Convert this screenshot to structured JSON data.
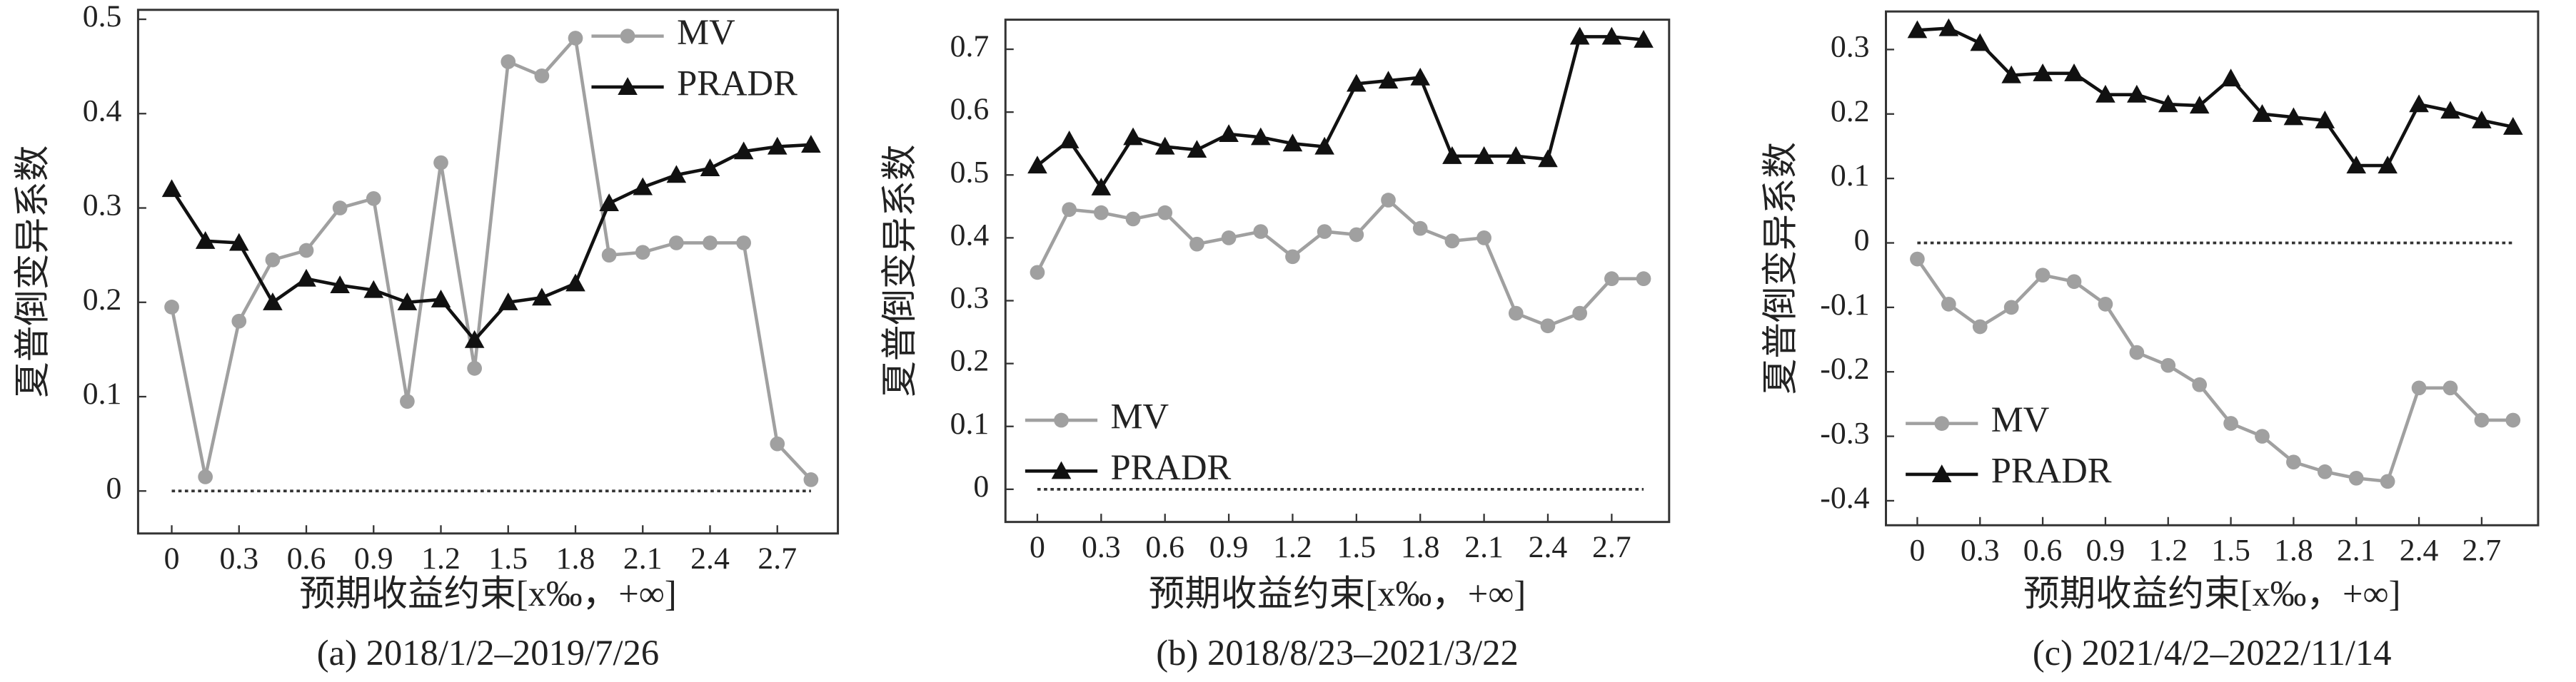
{
  "chart_data": [
    {
      "type": "line",
      "title": "(a) 2018/1/2–2019/7/26",
      "x_label": "预期收益约束[x‰，+∞]",
      "y_label": "夏普倒变异系数",
      "x": [
        0,
        0.15,
        0.3,
        0.45,
        0.6,
        0.75,
        0.9,
        1.05,
        1.2,
        1.35,
        1.5,
        1.65,
        1.8,
        1.95,
        2.1,
        2.25,
        2.4,
        2.55,
        2.7,
        2.85
      ],
      "series": [
        {
          "name": "MV",
          "color": "#a0a0a0",
          "marker": "circle",
          "values": [
            0.195,
            0.015,
            0.18,
            0.245,
            0.255,
            0.3,
            0.31,
            0.095,
            0.348,
            0.13,
            0.455,
            0.44,
            0.48,
            0.25,
            0.253,
            0.263,
            0.263,
            0.263,
            0.05,
            0.012
          ]
        },
        {
          "name": "PRADR",
          "color": "#111111",
          "marker": "triangle",
          "values": [
            0.32,
            0.265,
            0.263,
            0.2,
            0.225,
            0.218,
            0.213,
            0.2,
            0.203,
            0.16,
            0.2,
            0.205,
            0.22,
            0.305,
            0.322,
            0.335,
            0.342,
            0.36,
            0.365,
            0.367
          ]
        }
      ],
      "xlim": [
        -0.15,
        2.97
      ],
      "ylim": [
        -0.045,
        0.51
      ],
      "xticks": [
        0,
        0.3,
        0.6,
        0.9,
        1.2,
        1.5,
        1.8,
        2.1,
        2.4,
        2.7
      ],
      "yticks": [
        0,
        0.1,
        0.2,
        0.3,
        0.4,
        0.5
      ],
      "hline": 0,
      "legend": "upper right"
    },
    {
      "type": "line",
      "title": "(b) 2018/8/23–2021/3/22",
      "x_label": "预期收益约束[x‰，+∞]",
      "y_label": "夏普倒变异系数",
      "x": [
        0,
        0.15,
        0.3,
        0.45,
        0.6,
        0.75,
        0.9,
        1.05,
        1.2,
        1.35,
        1.5,
        1.65,
        1.8,
        1.95,
        2.1,
        2.25,
        2.4,
        2.55,
        2.7,
        2.85
      ],
      "series": [
        {
          "name": "MV",
          "color": "#a0a0a0",
          "marker": "circle",
          "values": [
            0.345,
            0.445,
            0.44,
            0.43,
            0.44,
            0.39,
            0.4,
            0.41,
            0.37,
            0.41,
            0.405,
            0.46,
            0.415,
            0.395,
            0.4,
            0.28,
            0.26,
            0.28,
            0.335,
            0.335
          ]
        },
        {
          "name": "PRADR",
          "color": "#111111",
          "marker": "triangle",
          "values": [
            0.515,
            0.555,
            0.48,
            0.56,
            0.545,
            0.54,
            0.565,
            0.56,
            0.55,
            0.545,
            0.645,
            0.65,
            0.655,
            0.53,
            0.53,
            0.53,
            0.525,
            0.72,
            0.72,
            0.715
          ]
        }
      ],
      "xlim": [
        -0.15,
        2.97
      ],
      "ylim": [
        -0.052,
        0.747
      ],
      "xticks": [
        0,
        0.3,
        0.6,
        0.9,
        1.2,
        1.5,
        1.8,
        2.1,
        2.4,
        2.7
      ],
      "yticks": [
        0,
        0.1,
        0.2,
        0.3,
        0.4,
        0.5,
        0.6,
        0.7
      ],
      "hline": 0,
      "legend": "lower left"
    },
    {
      "type": "line",
      "title": "(c) 2021/4/2–2022/11/14",
      "x_label": "预期收益约束[x‰，+∞]",
      "y_label": "夏普倒变异系数",
      "x": [
        0,
        0.15,
        0.3,
        0.45,
        0.6,
        0.75,
        0.9,
        1.05,
        1.2,
        1.35,
        1.5,
        1.65,
        1.8,
        1.95,
        2.1,
        2.25,
        2.4,
        2.55,
        2.7,
        2.85
      ],
      "series": [
        {
          "name": "MV",
          "color": "#a0a0a0",
          "marker": "circle",
          "values": [
            -0.025,
            -0.095,
            -0.13,
            -0.1,
            -0.05,
            -0.06,
            -0.095,
            -0.17,
            -0.19,
            -0.22,
            -0.28,
            -0.3,
            -0.34,
            -0.355,
            -0.365,
            -0.37,
            -0.225,
            -0.225,
            -0.275,
            -0.275
          ]
        },
        {
          "name": "PRADR",
          "color": "#111111",
          "marker": "triangle",
          "values": [
            0.33,
            0.333,
            0.31,
            0.26,
            0.263,
            0.263,
            0.23,
            0.23,
            0.215,
            0.213,
            0.255,
            0.2,
            0.195,
            0.19,
            0.12,
            0.12,
            0.215,
            0.205,
            0.19,
            0.18
          ]
        }
      ],
      "xlim": [
        -0.15,
        2.97
      ],
      "ylim": [
        -0.438,
        0.359
      ],
      "xticks": [
        0,
        0.3,
        0.6,
        0.9,
        1.2,
        1.5,
        1.8,
        2.1,
        2.4,
        2.7
      ],
      "yticks": [
        -0.4,
        -0.3,
        -0.2,
        -0.1,
        0,
        0.1,
        0.2,
        0.3
      ],
      "hline": 0,
      "legend": "lower left"
    }
  ]
}
